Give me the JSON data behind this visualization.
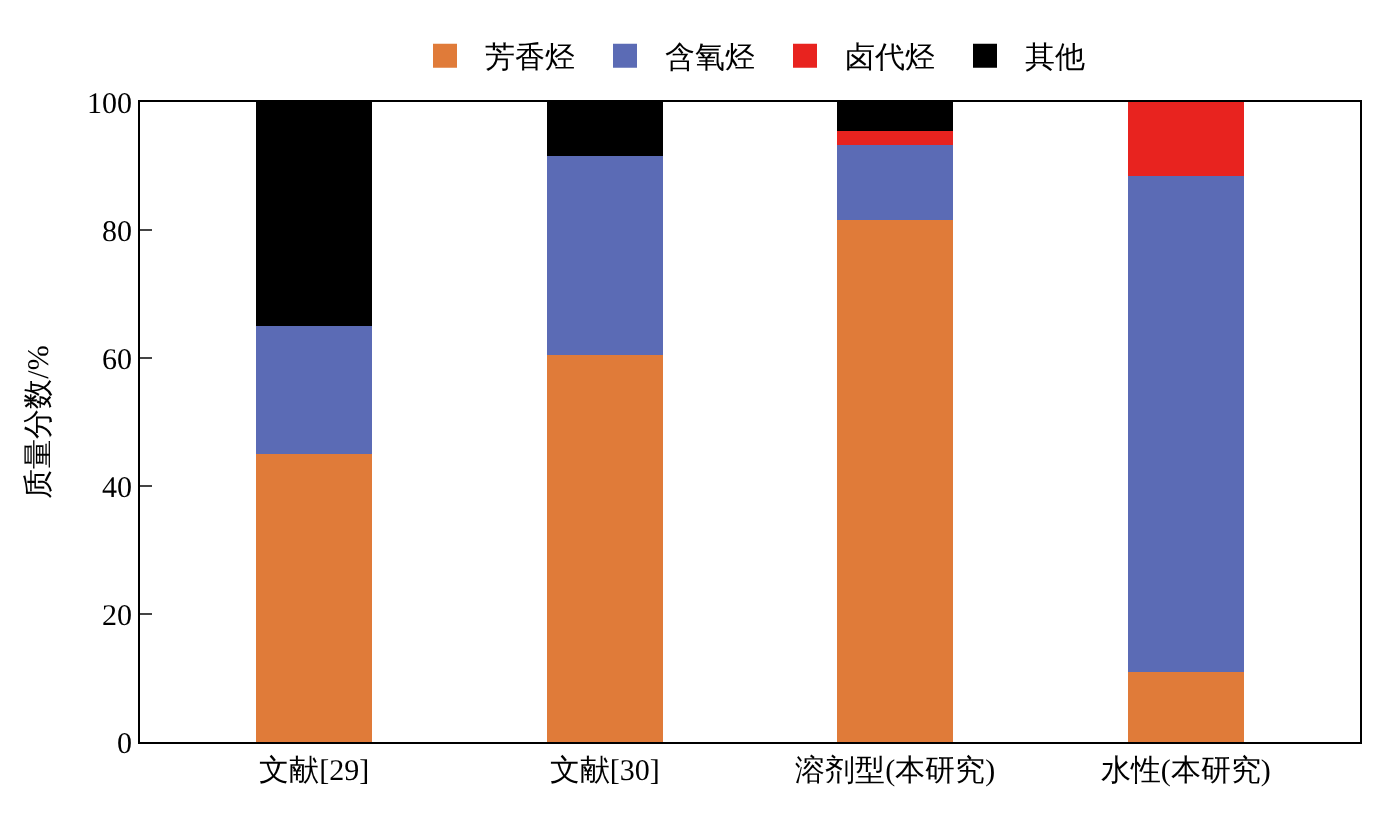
{
  "chart_data": {
    "type": "bar",
    "stacked": true,
    "ylabel": "质量分数/%",
    "categories": [
      "文献[29]",
      "文献[30]",
      "溶剂型(本研究)",
      "水性(本研究)"
    ],
    "series": [
      {
        "name": "芳香烃",
        "color": "#e07b39",
        "values": [
          45,
          60.5,
          81.6,
          10.9
        ]
      },
      {
        "name": "含氧烃",
        "color": "#5b6bb5",
        "values": [
          20,
          31,
          11.7,
          77.5
        ]
      },
      {
        "name": "卤代烃",
        "color": "#e8231f",
        "values": [
          0,
          0,
          2.2,
          11.6
        ]
      },
      {
        "name": "其他",
        "color": "#000000",
        "values": [
          35,
          8.5,
          4.5,
          0
        ]
      }
    ],
    "ylim": [
      0,
      100
    ],
    "yticks": [
      0,
      20,
      40,
      60,
      80,
      100
    ],
    "legend": "top"
  }
}
